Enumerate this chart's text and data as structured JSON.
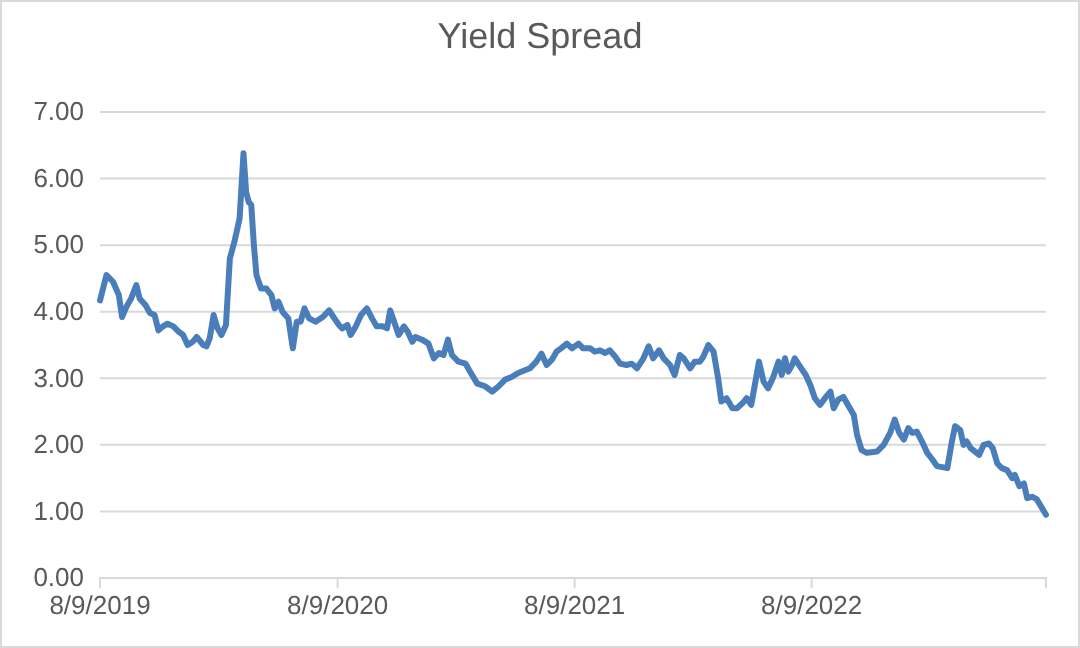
{
  "chart_data": {
    "type": "line",
    "title": "Yield Spread",
    "x": [
      "2019-08-09",
      "2019-08-19",
      "2019-08-29",
      "2019-09-07",
      "2019-09-12",
      "2019-09-19",
      "2019-09-26",
      "2019-10-04",
      "2019-10-09",
      "2019-10-18",
      "2019-10-25",
      "2019-11-01",
      "2019-11-07",
      "2019-11-14",
      "2019-11-21",
      "2019-11-30",
      "2019-12-08",
      "2019-12-15",
      "2019-12-22",
      "2019-12-30",
      "2020-01-05",
      "2020-01-15",
      "2020-01-20",
      "2020-01-25",
      "2020-01-31",
      "2020-02-06",
      "2020-02-12",
      "2020-02-19",
      "2020-02-25",
      "2020-03-03",
      "2020-03-11",
      "2020-03-17",
      "2020-03-21",
      "2020-03-25",
      "2020-03-29",
      "2020-04-02",
      "2020-04-06",
      "2020-04-13",
      "2020-04-21",
      "2020-04-29",
      "2020-05-04",
      "2020-05-10",
      "2020-05-16",
      "2020-05-25",
      "2020-06-01",
      "2020-06-07",
      "2020-06-13",
      "2020-06-19",
      "2020-06-26",
      "2020-07-06",
      "2020-07-17",
      "2020-07-27",
      "2020-08-04",
      "2020-08-11",
      "2020-08-16",
      "2020-08-24",
      "2020-08-29",
      "2020-09-06",
      "2020-09-14",
      "2020-09-23",
      "2020-10-01",
      "2020-10-08",
      "2020-10-17",
      "2020-10-24",
      "2020-10-29",
      "2020-11-04",
      "2020-11-11",
      "2020-11-19",
      "2020-11-25",
      "2020-12-02",
      "2020-12-07",
      "2020-12-17",
      "2020-12-27",
      "2021-01-04",
      "2021-01-12",
      "2021-01-19",
      "2021-01-26",
      "2021-02-01",
      "2021-02-11",
      "2021-02-22",
      "2021-03-04",
      "2021-03-12",
      "2021-03-24",
      "2021-04-04",
      "2021-04-14",
      "2021-04-24",
      "2021-05-04",
      "2021-05-14",
      "2021-06-01",
      "2021-06-11",
      "2021-06-19",
      "2021-06-27",
      "2021-07-05",
      "2021-07-12",
      "2021-07-19",
      "2021-07-28",
      "2021-08-05",
      "2021-08-15",
      "2021-08-22",
      "2021-09-02",
      "2021-09-09",
      "2021-09-17",
      "2021-09-25",
      "2021-10-02",
      "2021-10-11",
      "2021-10-18",
      "2021-10-28",
      "2021-11-05",
      "2021-11-13",
      "2021-11-23",
      "2021-12-01",
      "2021-12-08",
      "2021-12-17",
      "2021-12-24",
      "2022-01-03",
      "2022-01-10",
      "2022-01-18",
      "2022-01-24",
      "2022-02-03",
      "2022-02-10",
      "2022-02-18",
      "2022-02-23",
      "2022-03-03",
      "2022-03-11",
      "2022-03-18",
      "2022-03-23",
      "2022-03-31",
      "2022-04-09",
      "2022-04-16",
      "2022-04-24",
      "2022-05-01",
      "2022-05-08",
      "2022-05-15",
      "2022-05-20",
      "2022-05-27",
      "2022-06-03",
      "2022-06-11",
      "2022-06-19",
      "2022-06-24",
      "2022-06-29",
      "2022-07-04",
      "2022-07-10",
      "2022-07-14",
      "2022-07-22",
      "2022-07-31",
      "2022-08-07",
      "2022-08-14",
      "2022-08-22",
      "2022-08-31",
      "2022-09-07",
      "2022-09-12",
      "2022-09-19",
      "2022-09-27",
      "2022-10-04",
      "2022-10-13",
      "2022-10-18",
      "2022-10-25",
      "2022-11-02",
      "2022-11-18",
      "2022-11-28",
      "2022-12-08",
      "2022-12-15",
      "2022-12-22",
      "2022-12-29",
      "2023-01-05",
      "2023-01-11",
      "2023-01-18",
      "2023-01-26",
      "2023-02-03",
      "2023-02-11",
      "2023-02-18",
      "2023-03-06",
      "2023-03-13",
      "2023-03-18",
      "2023-03-26",
      "2023-03-31",
      "2023-04-05",
      "2023-04-11",
      "2023-04-24",
      "2023-05-01",
      "2023-05-09",
      "2023-05-15",
      "2023-05-22",
      "2023-05-29",
      "2023-06-06",
      "2023-06-14",
      "2023-06-18",
      "2023-06-25",
      "2023-07-02",
      "2023-07-07",
      "2023-07-15",
      "2023-07-22",
      "2023-07-28",
      "2023-08-05"
    ],
    "series": [
      {
        "color": "#4a7ebb",
        "values": [
          4.17,
          4.55,
          4.45,
          4.25,
          3.92,
          4.08,
          4.2,
          4.4,
          4.2,
          4.1,
          3.98,
          3.95,
          3.72,
          3.78,
          3.82,
          3.78,
          3.7,
          3.65,
          3.5,
          3.55,
          3.62,
          3.5,
          3.48,
          3.6,
          3.95,
          3.75,
          3.65,
          3.8,
          4.8,
          5.05,
          5.4,
          6.38,
          5.8,
          5.65,
          5.6,
          5.0,
          4.55,
          4.35,
          4.35,
          4.25,
          4.05,
          4.15,
          4.0,
          3.9,
          3.45,
          3.85,
          3.85,
          4.05,
          3.9,
          3.85,
          3.92,
          4.02,
          3.9,
          3.8,
          3.75,
          3.8,
          3.65,
          3.78,
          3.95,
          4.05,
          3.9,
          3.78,
          3.78,
          3.75,
          4.02,
          3.85,
          3.65,
          3.78,
          3.7,
          3.55,
          3.62,
          3.58,
          3.52,
          3.3,
          3.38,
          3.35,
          3.58,
          3.35,
          3.25,
          3.22,
          3.05,
          2.92,
          2.88,
          2.8,
          2.88,
          2.98,
          3.02,
          3.08,
          3.15,
          3.25,
          3.37,
          3.2,
          3.28,
          3.4,
          3.45,
          3.52,
          3.45,
          3.52,
          3.45,
          3.45,
          3.4,
          3.42,
          3.38,
          3.42,
          3.32,
          3.22,
          3.2,
          3.22,
          3.15,
          3.3,
          3.48,
          3.3,
          3.42,
          3.3,
          3.2,
          3.05,
          3.35,
          3.3,
          3.15,
          3.25,
          3.25,
          3.32,
          3.5,
          3.4,
          3.0,
          2.65,
          2.7,
          2.55,
          2.55,
          2.62,
          2.7,
          2.6,
          2.98,
          3.25,
          2.95,
          2.85,
          3.02,
          3.25,
          3.05,
          3.3,
          3.1,
          3.2,
          3.3,
          3.18,
          3.05,
          2.9,
          2.7,
          2.6,
          2.72,
          2.8,
          2.55,
          2.68,
          2.72,
          2.6,
          2.45,
          2.15,
          1.92,
          1.88,
          1.9,
          2.0,
          2.18,
          2.38,
          2.18,
          2.08,
          2.25,
          2.18,
          2.2,
          2.05,
          1.88,
          1.78,
          1.68,
          1.65,
          2.05,
          2.28,
          2.22,
          2.0,
          2.05,
          1.95,
          1.85,
          2.0,
          2.02,
          1.95,
          1.72,
          1.65,
          1.62,
          1.5,
          1.55,
          1.38,
          1.42,
          1.2,
          1.22,
          1.18,
          1.08,
          0.95
        ]
      }
    ],
    "xlim": [
      "2019-08-09",
      "2023-08-05"
    ],
    "xticks": [
      {
        "value": "2019-08-09",
        "label": "8/9/2019"
      },
      {
        "value": "2020-08-09",
        "label": "8/9/2020"
      },
      {
        "value": "2021-08-09",
        "label": "8/9/2021"
      },
      {
        "value": "2022-08-09",
        "label": "8/9/2022"
      }
    ],
    "ylim": [
      0,
      7
    ],
    "yticks": [
      {
        "value": 0,
        "label": "0.00"
      },
      {
        "value": 1,
        "label": "1.00"
      },
      {
        "value": 2,
        "label": "2.00"
      },
      {
        "value": 3,
        "label": "3.00"
      },
      {
        "value": 4,
        "label": "4.00"
      },
      {
        "value": 5,
        "label": "5.00"
      },
      {
        "value": 6,
        "label": "6.00"
      },
      {
        "value": 7,
        "label": "7.00"
      }
    ],
    "grid": "y",
    "marker": "none",
    "line_style": "solid"
  }
}
